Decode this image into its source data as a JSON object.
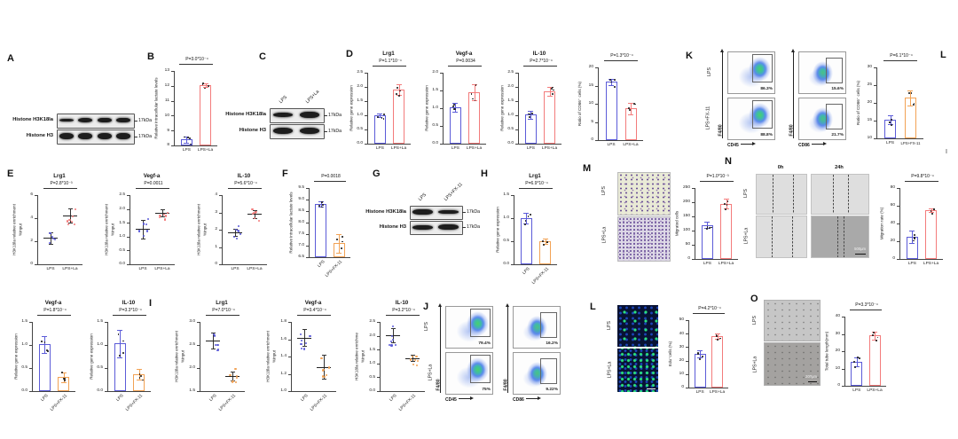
{
  "colors": {
    "blue": "#5b5bd8",
    "red": "#f37b7b",
    "orange": "#f2a254",
    "dotdark": "#1a1a1a"
  },
  "panel_labels": {
    "A": "A",
    "B": "B",
    "C": "C",
    "D": "D",
    "E": "E",
    "F": "F",
    "G": "G",
    "H": "H",
    "I": "I",
    "J": "J",
    "K": "K",
    "L_top": "L",
    "L": "L",
    "M": "M",
    "N": "N",
    "O": "O",
    "edge_mark": "I"
  },
  "blots": {
    "A": {
      "rows": [
        {
          "name": "Histone H3K18la",
          "kda": "17kDa"
        },
        {
          "name": "Histone H3",
          "kda": "17kDa"
        }
      ],
      "lanes": 4,
      "lane_labels": []
    },
    "C": {
      "rows": [
        {
          "name": "Histone H3K18la",
          "kda": "17kDa"
        },
        {
          "name": "Histone H3",
          "kda": "17kDa"
        }
      ],
      "lanes": 2,
      "lane_labels": [
        "LPS",
        "LPS+La"
      ]
    },
    "G": {
      "rows": [
        {
          "name": "Histone H3K18la",
          "kda": "17kDa"
        },
        {
          "name": "Histone H3",
          "kda": "17kDa"
        }
      ],
      "lanes": 2,
      "lane_labels": [
        "LPS",
        "LPS+FX-11"
      ]
    }
  },
  "chart_data": [
    {
      "id": "B",
      "type": "bar",
      "title": "",
      "pvalue": "P=3.0*10⁻⁴",
      "ylabel": "Relative intracellular lactate levels",
      "ylim": [
        8,
        13
      ],
      "yticks": [
        "8",
        "9",
        "10",
        "11",
        "12",
        "13"
      ],
      "categories": [
        "LPS",
        "LPS+La"
      ],
      "values": [
        8.4,
        12.05
      ],
      "errors": [
        0.2,
        0.1
      ],
      "colors": [
        "blue",
        "red"
      ]
    },
    {
      "id": "D1",
      "type": "bar",
      "title": "Lrg1",
      "pvalue": "P=1.1*10⁻⁴",
      "ylabel": "Relative gene expression",
      "ylim": [
        0,
        2.5
      ],
      "yticks": [
        "0.0",
        "0.5",
        "1.0",
        "1.5",
        "2.0",
        "2.5"
      ],
      "categories": [
        "LPS",
        "LPS+La"
      ],
      "values": [
        1.0,
        1.9
      ],
      "errors": [
        0.07,
        0.18
      ],
      "colors": [
        "blue",
        "red"
      ]
    },
    {
      "id": "D2",
      "type": "bar",
      "title": "Vegf-a",
      "pvalue": "P=0.0034",
      "ylabel": "Relative gene expression",
      "ylim": [
        0,
        2.0
      ],
      "yticks": [
        "0.0",
        "0.5",
        "1.0",
        "1.5",
        "2.0"
      ],
      "categories": [
        "LPS",
        "LPS+La"
      ],
      "values": [
        1.02,
        1.45
      ],
      "errors": [
        0.12,
        0.22
      ],
      "colors": [
        "blue",
        "red"
      ]
    },
    {
      "id": "D3",
      "type": "bar",
      "title": "IL-10",
      "pvalue": "P=2.7*10⁻⁴",
      "ylabel": "Relative gene expression",
      "ylim": [
        0,
        2.5
      ],
      "yticks": [
        "0.0",
        "0.5",
        "1.0",
        "1.5",
        "2.0",
        "2.5"
      ],
      "categories": [
        "LPS",
        "LPS+La"
      ],
      "values": [
        1.02,
        1.85
      ],
      "errors": [
        0.15,
        0.15
      ],
      "colors": [
        "blue",
        "red"
      ]
    },
    {
      "id": "RQ1",
      "type": "bar",
      "title": "",
      "pvalue": "P=1.3*10⁻⁴",
      "ylabel": "Ratio of CD86⁺ cells (%)",
      "ylim": [
        0,
        20
      ],
      "yticks": [
        "0",
        "5",
        "10",
        "15",
        "20"
      ],
      "categories": [
        "LPS",
        "LPS+La"
      ],
      "values": [
        16,
        8.7
      ],
      "errors": [
        0.8,
        1.6
      ],
      "colors": [
        "blue",
        "red"
      ]
    },
    {
      "id": "RQ2",
      "type": "bar",
      "title": "",
      "pvalue": "P=6.1*10⁻⁴",
      "ylabel": "Ratio of CD86⁺ cells (%)",
      "ylim": [
        10,
        30
      ],
      "yticks": [
        "10",
        "15",
        "20",
        "25",
        "30"
      ],
      "categories": [
        "LPS",
        "LPS+FX-11"
      ],
      "values": [
        15.3,
        21.4
      ],
      "errors": [
        1.2,
        2.2
      ],
      "colors": [
        "blue",
        "orange"
      ]
    },
    {
      "id": "E1",
      "type": "scatter",
      "title": "Lrg1",
      "pvalue": "P=2.8*10⁻³",
      "ylabel": "H3K18la relative enrichment",
      "ylabel2": "%input",
      "ylim": [
        0,
        6
      ],
      "yticks": [
        "0",
        "2",
        "4",
        "6"
      ],
      "categories": [
        "LPS",
        "LPS+La"
      ],
      "values": [
        2.3,
        4.25
      ],
      "errors": [
        0.5,
        0.6
      ],
      "colors": [
        "blue",
        "red"
      ]
    },
    {
      "id": "E2",
      "type": "scatter",
      "title": "Vegf-a",
      "pvalue": "P=0.0011",
      "ylabel": "H3K18la relative enrichment",
      "ylabel2": "%input",
      "ylim": [
        0,
        2.5
      ],
      "yticks": [
        "0.0",
        "0.5",
        "1.0",
        "1.5",
        "2.0",
        "2.5"
      ],
      "categories": [
        "LPS",
        "LPS+La"
      ],
      "values": [
        1.27,
        1.86
      ],
      "errors": [
        0.33,
        0.12
      ],
      "colors": [
        "blue",
        "red"
      ]
    },
    {
      "id": "E3",
      "type": "scatter",
      "title": "IL-10",
      "pvalue": "P=5.6*10⁻⁴",
      "ylabel": "H3K18la relative enrichment",
      "ylabel2": "%input",
      "ylim": [
        0,
        4
      ],
      "yticks": [
        "0",
        "1",
        "2",
        "3",
        "4"
      ],
      "categories": [
        "LPS",
        "LPS+La"
      ],
      "values": [
        1.85,
        2.9
      ],
      "errors": [
        0.2,
        0.25
      ],
      "colors": [
        "blue",
        "red"
      ]
    },
    {
      "id": "F",
      "type": "bar",
      "title": "",
      "pvalue": "P=0.0018",
      "ylabel": "Relative intracellular lactate levels",
      "ylim": [
        6.5,
        9.5
      ],
      "yticks": [
        "6.5",
        "7.0",
        "7.5",
        "8.0",
        "8.5",
        "9.0",
        "9.5"
      ],
      "categories": [
        "LPS",
        "LPS+FX-11"
      ],
      "values": [
        8.8,
        7.1
      ],
      "errors": [
        0.12,
        0.4
      ],
      "colors": [
        "blue",
        "orange"
      ],
      "rotate_x": true
    },
    {
      "id": "H",
      "type": "bar",
      "title": "Lrg1",
      "pvalue": "P=6.9*10⁻⁴",
      "ylabel": "Relative gene expression",
      "ylim": [
        0,
        1.5
      ],
      "yticks": [
        "0.0",
        "0.5",
        "1.0",
        "1.5"
      ],
      "categories": [
        "LPS",
        "LPS+FX-11"
      ],
      "values": [
        1.0,
        0.5
      ],
      "errors": [
        0.12,
        0.06
      ],
      "colors": [
        "blue",
        "orange"
      ],
      "rotate_x": true
    },
    {
      "id": "M",
      "type": "bar",
      "title": "",
      "pvalue": "P=1.0*10⁻³",
      "ylabel": "Migrated cells",
      "ylim": [
        0,
        250
      ],
      "yticks": [
        "0",
        "50",
        "100",
        "150",
        "200",
        "250"
      ],
      "categories": [
        "LPS",
        "LPS+La"
      ],
      "values": [
        120,
        195
      ],
      "errors": [
        10,
        18
      ],
      "colors": [
        "blue",
        "red"
      ]
    },
    {
      "id": "N",
      "type": "bar",
      "title": "",
      "pvalue": "P=9.8*10⁻⁴",
      "ylabel": "Migration rate (%)",
      "ylim": [
        0,
        80
      ],
      "yticks": [
        "0",
        "20",
        "40",
        "60",
        "80"
      ],
      "categories": [
        "LPS",
        "LPS+La"
      ],
      "values": [
        25,
        55
      ],
      "errors": [
        7,
        2
      ],
      "colors": [
        "blue",
        "red"
      ]
    },
    {
      "id": "HV",
      "type": "bar",
      "title": "Vegf-a",
      "pvalue": "P=1.8*10⁻⁴",
      "ylabel": "Relative gene expression",
      "ylim": [
        0,
        1.5
      ],
      "yticks": [
        "0.0",
        "0.5",
        "1.0",
        "1.5"
      ],
      "categories": [
        "LPS",
        "LPS+FX-11"
      ],
      "values": [
        1.01,
        0.3
      ],
      "errors": [
        0.18,
        0.1
      ],
      "colors": [
        "blue",
        "orange"
      ],
      "rotate_x": true
    },
    {
      "id": "HI",
      "type": "bar",
      "title": "IL-10",
      "pvalue": "P=3.3*10⁻⁴",
      "ylabel": "Relative gene expression",
      "ylim": [
        0,
        1.5
      ],
      "yticks": [
        "0.0",
        "0.5",
        "1.0",
        "1.5"
      ],
      "categories": [
        "LPS",
        "LPS+FX-11"
      ],
      "values": [
        1.03,
        0.37
      ],
      "errors": [
        0.3,
        0.12
      ],
      "colors": [
        "blue",
        "orange"
      ],
      "rotate_x": true
    },
    {
      "id": "I1",
      "type": "scatter",
      "title": "Lrg1",
      "pvalue": "P=7.0*10⁻⁴",
      "ylabel": "H3K18la relative enrichment",
      "ylabel2": "%input",
      "ylim": [
        1.5,
        3.0
      ],
      "yticks": [
        "1.5",
        "2.0",
        "2.5",
        "3.0"
      ],
      "categories": [
        "LPS",
        "LPS+FX-11"
      ],
      "values": [
        2.6,
        1.83
      ],
      "errors": [
        0.17,
        0.1
      ],
      "colors": [
        "blue",
        "orange"
      ],
      "rotate_x": true
    },
    {
      "id": "I2",
      "type": "scatter",
      "title": "Vegf-a",
      "pvalue": "P=3.4*10⁻⁴",
      "ylabel": "H3K18la relative enrichment",
      "ylabel2": "%input",
      "ylim": [
        1.0,
        1.8
      ],
      "yticks": [
        "1.0",
        "1.2",
        "1.4",
        "1.6",
        "1.8"
      ],
      "categories": [
        "LPS",
        "LPS+FX-11"
      ],
      "values": [
        1.62,
        1.28
      ],
      "errors": [
        0.1,
        0.14
      ],
      "colors": [
        "blue",
        "orange"
      ],
      "rotate_x": true
    },
    {
      "id": "I3",
      "type": "scatter",
      "title": "IL-10",
      "pvalue": "P=3.2*10⁻⁴",
      "ylabel": "H3K18la relative enrichme",
      "ylabel2": "%input",
      "ylim": [
        0,
        2.5
      ],
      "yticks": [
        "0.0",
        "0.5",
        "1.0",
        "1.5",
        "2.0",
        "2.5"
      ],
      "categories": [
        "LPS",
        "LPS+FX-11"
      ],
      "values": [
        2.02,
        1.2
      ],
      "errors": [
        0.25,
        0.12
      ],
      "colors": [
        "blue",
        "orange"
      ],
      "rotate_x": true
    },
    {
      "id": "EDU",
      "type": "bar",
      "title": "",
      "pvalue": "P=4.2*10⁻⁴",
      "ylabel": "Edu⁺cells (%)",
      "ylim": [
        0,
        50
      ],
      "yticks": [
        "0",
        "10",
        "20",
        "30",
        "40",
        "50"
      ],
      "categories": [
        "LPS",
        "LPS+La"
      ],
      "values": [
        25,
        38
      ],
      "errors": [
        2.5,
        2
      ],
      "colors": [
        "blue",
        "red"
      ]
    },
    {
      "id": "TUBE",
      "type": "bar",
      "title": "",
      "pvalue": "P=3.3*10⁻⁴",
      "ylabel": "Total tube length(mm)",
      "ylim": [
        0,
        40
      ],
      "yticks": [
        "0",
        "10",
        "20",
        "30",
        "40"
      ],
      "categories": [
        "LPS",
        "LPS+La"
      ],
      "values": [
        14,
        29
      ],
      "errors": [
        2.5,
        2.5
      ],
      "colors": [
        "blue",
        "red"
      ]
    }
  ],
  "flow_panels": {
    "K": {
      "row_labels": [
        "LPS",
        "LPS+FX-11"
      ],
      "y_axis": "F4/80",
      "columns": [
        {
          "x_axis": "CD45",
          "percents": [
            "86.3%",
            "88.8%"
          ]
        },
        {
          "x_axis": "CD86",
          "percents": [
            "15.6%",
            "21.7%"
          ]
        }
      ]
    },
    "J": {
      "row_labels": [
        "LPS",
        "LPS+La"
      ],
      "y_axis": "F4/80",
      "columns": [
        {
          "x_axis": "CD45",
          "percents": [
            "79.4%",
            "75%"
          ]
        },
        {
          "x_axis": "CD86",
          "percents": [
            "16.2%",
            "9.22%"
          ]
        }
      ]
    }
  },
  "images": {
    "M": {
      "row_labels": [
        "LPS",
        "LPS+La"
      ]
    },
    "N": {
      "row_labels": [
        "LPS",
        "LPS+La"
      ],
      "col_headers": [
        "0h",
        "24h"
      ],
      "scale": "500μm"
    },
    "L": {
      "row_labels": [
        "LPS",
        "LPS+La"
      ]
    },
    "O": {
      "row_labels": [
        "LPS",
        "LPS+La"
      ],
      "scale": "200μm"
    }
  }
}
